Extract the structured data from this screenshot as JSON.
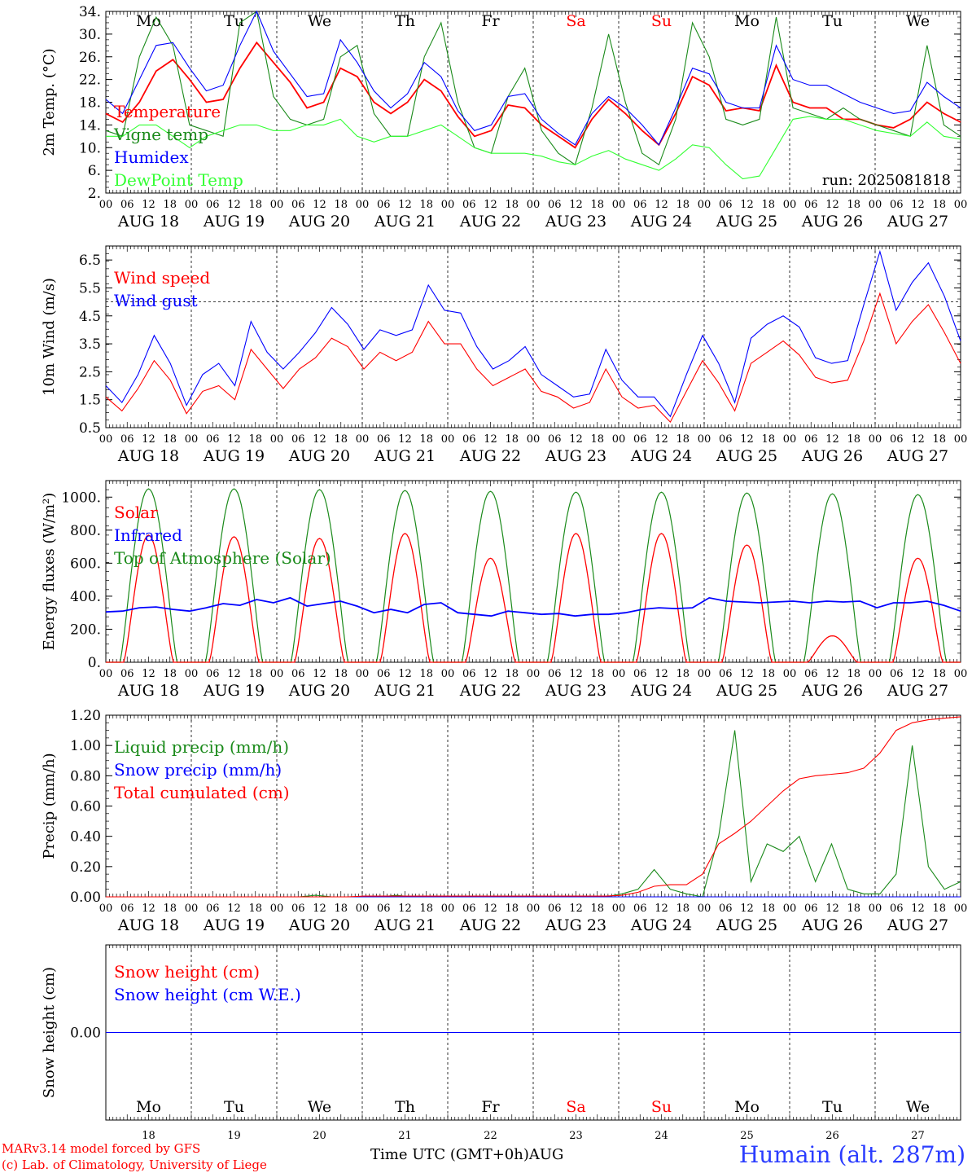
{
  "colors": {
    "red": "#ff0000",
    "green": "#1a8a1a",
    "blue": "#0000ff",
    "light_green": "#33ff33",
    "black": "#000000",
    "weekend": "#ff0000"
  },
  "footer": {
    "credit_line1": "MARv3.14 model forced by GFS",
    "credit_line2": "(c) Lab. of Climatology, University of Liege",
    "xaxis_title": "Time UTC (GMT+0h)AUG",
    "station": "Humain (alt. 287m)"
  },
  "chart_data": [
    {
      "type": "line",
      "ylabel": "2m Temp. (°C)",
      "ylim": [
        2,
        34
      ],
      "yticks": [
        "34.",
        "30.",
        "26.",
        "22.",
        "18.",
        "14.",
        "10.",
        "6.",
        "2."
      ],
      "weekdays": [
        "Mo",
        "Tu",
        "We",
        "Th",
        "Fr",
        "Sa",
        "Su",
        "Mo",
        "Tu",
        "We"
      ],
      "weekend_flags": [
        false,
        false,
        false,
        false,
        false,
        true,
        true,
        false,
        false,
        false
      ],
      "date_labels": [
        "AUG 18",
        "AUG 19",
        "AUG 20",
        "AUG 21",
        "AUG 22",
        "AUG 23",
        "AUG 24",
        "AUG 25",
        "AUG 26",
        "AUG 27"
      ],
      "hour_labels": [
        "00",
        "06",
        "12",
        "18"
      ],
      "annotation": "run: 2025081818",
      "legend": [
        "Temperature",
        "Vigne temp",
        "Humidex",
        "DewPoint Temp"
      ],
      "x_hours_step": 6,
      "series": [
        {
          "name": "Temperature",
          "color": "red",
          "values": [
            16,
            14.5,
            18,
            23.5,
            25.5,
            22,
            18,
            18.5,
            24,
            28.5,
            25,
            21.5,
            17,
            18,
            24,
            22.5,
            18,
            16,
            18,
            22,
            20,
            15.5,
            12,
            13,
            17.5,
            17,
            14,
            12,
            10,
            15,
            18.5,
            16,
            13,
            10.5,
            16,
            22.5,
            21,
            16.5,
            17,
            16.5,
            24.5,
            18,
            17,
            17,
            15,
            15,
            14,
            13.5,
            15,
            18,
            16,
            14.5
          ]
        },
        {
          "name": "Vigne temp",
          "color": "green",
          "values": [
            13,
            12,
            26,
            33,
            28,
            14,
            13,
            12,
            32,
            34,
            19,
            15,
            14,
            15,
            26,
            28,
            16,
            12,
            12,
            26,
            32,
            18,
            10,
            9,
            19,
            24,
            13,
            9,
            7,
            17,
            30,
            18,
            9,
            7,
            15,
            32,
            26,
            15,
            14,
            15,
            33,
            17,
            16,
            15,
            17,
            15,
            14,
            13,
            12,
            28,
            14,
            12
          ]
        },
        {
          "name": "Humidex",
          "color": "blue",
          "values": [
            18.5,
            16,
            22,
            28,
            28.5,
            24,
            20,
            21,
            28,
            34,
            27,
            23,
            19,
            19.5,
            29,
            25,
            20,
            17,
            19.5,
            25,
            22.5,
            16.5,
            13,
            14,
            19,
            19.5,
            15,
            12.5,
            10.5,
            16,
            19,
            17,
            14,
            10.5,
            17,
            24,
            23,
            18,
            17,
            17,
            28,
            22,
            21,
            21,
            19.5,
            18,
            17,
            16,
            16.5,
            21.5,
            19,
            17
          ]
        },
        {
          "name": "DewPoint Temp",
          "color": "light_green",
          "values": [
            12,
            12,
            14,
            14,
            12,
            10,
            12,
            13,
            14,
            14,
            13,
            13,
            14,
            14,
            15,
            12,
            11,
            12,
            12,
            13,
            14,
            12,
            10,
            9,
            9,
            9,
            8.5,
            7.5,
            7,
            8.5,
            9.5,
            8,
            7,
            6,
            8,
            10.5,
            10,
            7,
            4.5,
            5,
            10,
            15,
            15.5,
            15,
            15,
            14,
            13,
            12.5,
            12,
            14.5,
            12,
            11.5
          ]
        }
      ]
    },
    {
      "type": "line",
      "ylabel": "10m Wind (m/s)",
      "ylim": [
        0.5,
        7
      ],
      "yticks": [
        "6.5",
        "5.5",
        "4.5",
        "3.5",
        "2.5",
        "1.5",
        "0.5"
      ],
      "reference_line": 5,
      "date_labels": [
        "AUG 18",
        "AUG 19",
        "AUG 20",
        "AUG 21",
        "AUG 22",
        "AUG 23",
        "AUG 24",
        "AUG 25",
        "AUG 26",
        "AUG 27"
      ],
      "hour_labels": [
        "00",
        "06",
        "12",
        "18"
      ],
      "legend": [
        "Wind speed",
        "Wind gust"
      ],
      "x_hours_step": 6,
      "series": [
        {
          "name": "Wind speed",
          "color": "red",
          "values": [
            1.6,
            1.1,
            1.9,
            2.9,
            2.2,
            1.0,
            1.8,
            2.0,
            1.5,
            3.3,
            2.6,
            1.9,
            2.6,
            3.0,
            3.7,
            3.4,
            2.6,
            3.2,
            2.9,
            3.2,
            4.3,
            3.5,
            3.5,
            2.6,
            2.0,
            2.3,
            2.6,
            1.8,
            1.6,
            1.2,
            1.4,
            2.6,
            1.6,
            1.2,
            1.3,
            0.7,
            1.8,
            2.9,
            2.1,
            1.1,
            2.8,
            3.2,
            3.6,
            3.1,
            2.3,
            2.1,
            2.2,
            3.6,
            5.3,
            3.5,
            4.3,
            4.9,
            3.9,
            2.8
          ]
        },
        {
          "name": "Wind gust",
          "color": "blue",
          "values": [
            2.0,
            1.4,
            2.4,
            3.8,
            2.8,
            1.3,
            2.4,
            2.8,
            2.0,
            4.3,
            3.2,
            2.6,
            3.2,
            3.9,
            4.8,
            4.2,
            3.3,
            4.0,
            3.8,
            4.0,
            5.6,
            4.7,
            4.6,
            3.4,
            2.6,
            2.9,
            3.4,
            2.4,
            2.0,
            1.6,
            1.7,
            3.3,
            2.2,
            1.6,
            1.6,
            0.9,
            2.4,
            3.8,
            2.8,
            1.4,
            3.7,
            4.2,
            4.5,
            4.1,
            3.0,
            2.8,
            2.9,
            4.9,
            6.8,
            4.7,
            5.7,
            6.4,
            5.2,
            3.6
          ]
        }
      ]
    },
    {
      "type": "line",
      "ylabel": "Energy fluxes (W/m²)",
      "ylim": [
        0,
        1100
      ],
      "yticks": [
        "1000.",
        "800.",
        "600.",
        "400.",
        "200.",
        "0."
      ],
      "date_labels": [
        "AUG 18",
        "AUG 19",
        "AUG 20",
        "AUG 21",
        "AUG 22",
        "AUG 23",
        "AUG 24",
        "AUG 25",
        "AUG 26",
        "AUG 27"
      ],
      "hour_labels": [
        "00",
        "06",
        "12",
        "18"
      ],
      "legend": [
        "Solar",
        "Infrared",
        "Top of Atmosphere (Solar)"
      ],
      "solar_peaks": [
        770,
        760,
        750,
        780,
        630,
        780,
        780,
        710,
        160,
        630
      ],
      "toa_peaks": [
        1050,
        1050,
        1045,
        1040,
        1035,
        1030,
        1030,
        1025,
        1020,
        1015
      ],
      "series": [
        {
          "name": "Infrared",
          "color": "blue",
          "x_hours_step": 6,
          "values": [
            305,
            310,
            330,
            335,
            320,
            310,
            330,
            355,
            345,
            380,
            360,
            390,
            340,
            355,
            370,
            340,
            300,
            320,
            300,
            350,
            360,
            300,
            290,
            280,
            310,
            300,
            290,
            295,
            280,
            290,
            290,
            300,
            320,
            330,
            325,
            330,
            390,
            370,
            365,
            360,
            365,
            370,
            360,
            370,
            365,
            370,
            330,
            360,
            360,
            370,
            345,
            310
          ]
        }
      ]
    },
    {
      "type": "line",
      "ylabel": "Precip (mm/h)",
      "ylim": [
        0,
        1.2
      ],
      "yticks": [
        "1.20",
        "1.00",
        "0.80",
        "0.60",
        "0.40",
        "0.20",
        "0.00"
      ],
      "date_labels": [
        "AUG 18",
        "AUG 19",
        "AUG 20",
        "AUG 21",
        "AUG 22",
        "AUG 23",
        "AUG 24",
        "AUG 25",
        "AUG 26",
        "AUG 27"
      ],
      "hour_labels": [
        "00",
        "06",
        "12",
        "18"
      ],
      "legend": [
        "Liquid precip (mm/h)",
        "Snow precip (mm/h)",
        "Total cumulated (cm)"
      ],
      "x_hours_step": 6,
      "series": [
        {
          "name": "Liquid precip (mm/h)",
          "color": "green",
          "values": [
            0,
            0,
            0,
            0,
            0,
            0,
            0,
            0,
            0,
            0,
            0,
            0,
            0,
            0.01,
            0,
            0,
            0,
            0,
            0.01,
            0,
            0,
            0,
            0,
            0,
            0,
            0,
            0,
            0,
            0,
            0,
            0,
            0,
            0.02,
            0.05,
            0.18,
            0.05,
            0.02,
            0,
            0.4,
            1.1,
            0.1,
            0.35,
            0.3,
            0.4,
            0.1,
            0.35,
            0.05,
            0.02,
            0.02,
            0.15,
            1.0,
            0.2,
            0.05,
            0.1
          ]
        },
        {
          "name": "Snow precip (mm/h)",
          "color": "blue",
          "values": [
            0,
            0,
            0,
            0,
            0,
            0,
            0,
            0,
            0,
            0,
            0,
            0,
            0,
            0,
            0,
            0,
            0,
            0,
            0,
            0,
            0,
            0,
            0,
            0,
            0,
            0,
            0,
            0,
            0,
            0,
            0,
            0,
            0,
            0,
            0,
            0,
            0,
            0,
            0,
            0,
            0,
            0,
            0,
            0,
            0,
            0,
            0,
            0,
            0,
            0,
            0,
            0,
            0,
            0
          ]
        },
        {
          "name": "Total cumulated (cm)",
          "color": "red",
          "values": [
            0,
            0,
            0,
            0,
            0,
            0,
            0,
            0,
            0,
            0,
            0,
            0,
            0,
            0,
            0,
            0,
            0.005,
            0.005,
            0.005,
            0.005,
            0.005,
            0.005,
            0.005,
            0.005,
            0.005,
            0.005,
            0.005,
            0.005,
            0.005,
            0.005,
            0.005,
            0.005,
            0.01,
            0.03,
            0.07,
            0.08,
            0.08,
            0.15,
            0.35,
            0.42,
            0.5,
            0.6,
            0.7,
            0.78,
            0.8,
            0.81,
            0.82,
            0.85,
            0.95,
            1.1,
            1.15,
            1.17,
            1.18,
            1.19
          ]
        }
      ]
    },
    {
      "type": "line",
      "ylabel": "Snow height (cm)",
      "ylim": [
        -1,
        1
      ],
      "yticks": [
        "0.00"
      ],
      "weekdays": [
        "Mo",
        "Tu",
        "We",
        "Th",
        "Fr",
        "Sa",
        "Su",
        "Mo",
        "Tu",
        "We"
      ],
      "weekend_flags": [
        false,
        false,
        false,
        false,
        false,
        true,
        true,
        false,
        false,
        false
      ],
      "day_numbers": [
        "18",
        "19",
        "20",
        "21",
        "22",
        "23",
        "24",
        "25",
        "26",
        "27"
      ],
      "legend": [
        "Snow height (cm)",
        "Snow height (cm W.E.)"
      ],
      "series": [
        {
          "name": "Snow height (cm)",
          "color": "red",
          "values": [
            0,
            0
          ]
        },
        {
          "name": "Snow height (cm W.E.)",
          "color": "blue",
          "values": [
            0,
            0
          ]
        }
      ]
    }
  ]
}
